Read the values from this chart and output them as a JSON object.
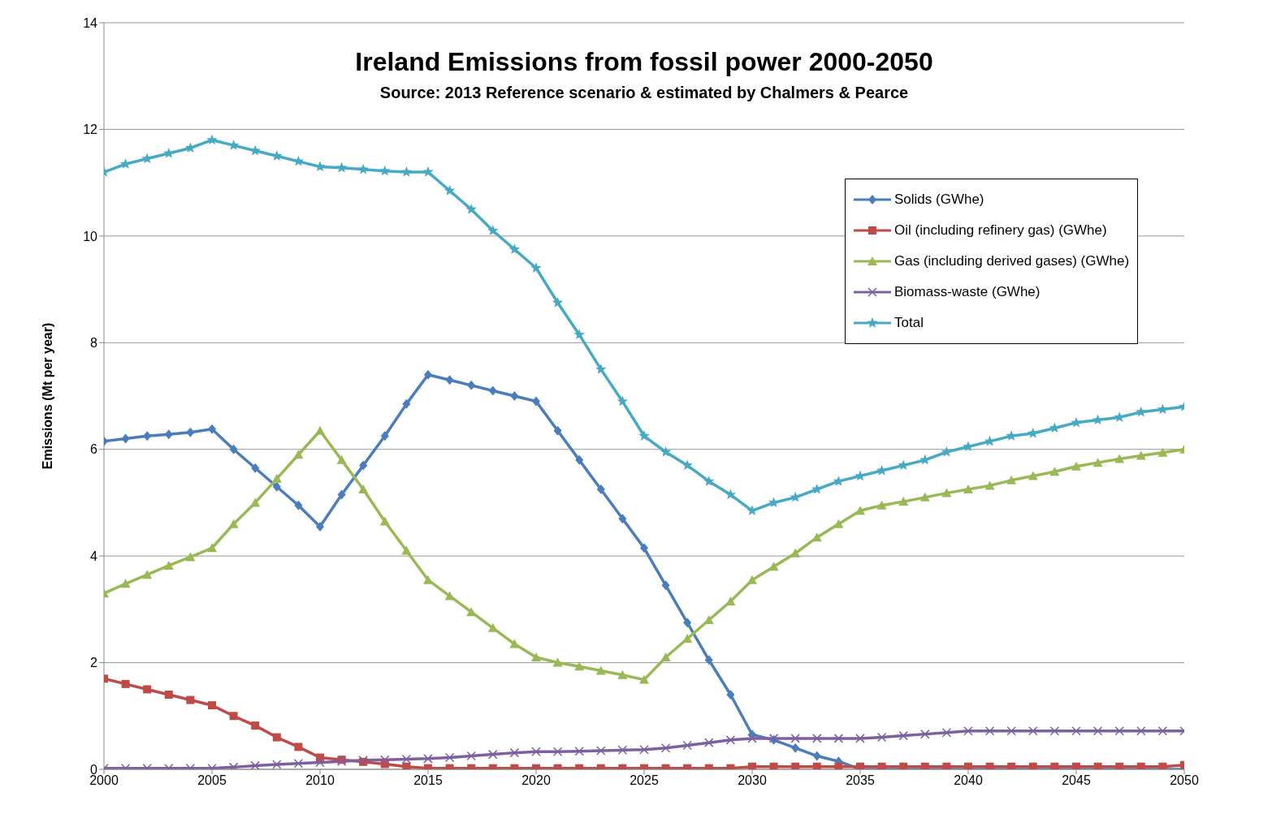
{
  "chart_data": {
    "type": "line",
    "title": "Ireland Emissions from fossil power 2000-2050",
    "subtitle": "Source: 2013 Reference scenario & estimated by Chalmers & Pearce",
    "ylabel": "Emissions  (Mt per year)",
    "x": [
      2000,
      2001,
      2002,
      2003,
      2004,
      2005,
      2006,
      2007,
      2008,
      2009,
      2010,
      2011,
      2012,
      2013,
      2014,
      2015,
      2016,
      2017,
      2018,
      2019,
      2020,
      2021,
      2022,
      2023,
      2024,
      2025,
      2026,
      2027,
      2028,
      2029,
      2030,
      2031,
      2032,
      2033,
      2034,
      2035,
      2036,
      2037,
      2038,
      2039,
      2040,
      2041,
      2042,
      2043,
      2044,
      2045,
      2046,
      2047,
      2048,
      2049,
      2050
    ],
    "xlim": [
      2000,
      2050
    ],
    "xticks": [
      2000,
      2005,
      2010,
      2015,
      2020,
      2025,
      2030,
      2035,
      2040,
      2045,
      2050
    ],
    "ylim": [
      0,
      14
    ],
    "yticks": [
      0,
      2,
      4,
      6,
      8,
      10,
      12,
      14
    ],
    "grid": "y",
    "legend": "top right",
    "series": [
      {
        "name": "Solids (GWhe)",
        "color": "#4a7ebb",
        "marker": "diamond",
        "values": [
          6.15,
          6.2,
          6.25,
          6.28,
          6.32,
          6.38,
          6.0,
          5.65,
          5.3,
          4.95,
          4.55,
          5.15,
          5.7,
          6.25,
          6.85,
          7.4,
          7.3,
          7.2,
          7.1,
          7.0,
          6.9,
          6.35,
          5.8,
          5.25,
          4.7,
          4.15,
          3.45,
          2.75,
          2.05,
          1.4,
          0.65,
          0.55,
          0.4,
          0.25,
          0.15,
          0,
          0,
          0,
          0,
          0,
          0,
          0,
          0,
          0,
          0,
          0,
          0,
          0,
          0,
          0,
          0
        ]
      },
      {
        "name": "Oil (including refinery gas) (GWhe)",
        "color": "#be4b48",
        "marker": "square",
        "values": [
          1.7,
          1.6,
          1.5,
          1.4,
          1.3,
          1.2,
          1.0,
          0.82,
          0.6,
          0.42,
          0.22,
          0.18,
          0.14,
          0.1,
          0.05,
          0.02,
          0.02,
          0.02,
          0.02,
          0.02,
          0.02,
          0.02,
          0.02,
          0.02,
          0.02,
          0.02,
          0.02,
          0.02,
          0.02,
          0.02,
          0.05,
          0.05,
          0.05,
          0.05,
          0.05,
          0.05,
          0.05,
          0.05,
          0.05,
          0.05,
          0.05,
          0.05,
          0.05,
          0.05,
          0.05,
          0.05,
          0.05,
          0.05,
          0.05,
          0.05,
          0.08
        ]
      },
      {
        "name": "Gas (including derived gases) (GWhe)",
        "color": "#98b954",
        "marker": "triangle",
        "values": [
          3.3,
          3.48,
          3.65,
          3.82,
          3.98,
          4.15,
          4.6,
          5.0,
          5.45,
          5.9,
          6.35,
          5.8,
          5.25,
          4.65,
          4.1,
          3.55,
          3.25,
          2.95,
          2.65,
          2.35,
          2.1,
          2.0,
          1.93,
          1.85,
          1.77,
          1.68,
          2.1,
          2.45,
          2.8,
          3.15,
          3.55,
          3.8,
          4.05,
          4.35,
          4.6,
          4.85,
          4.95,
          5.02,
          5.1,
          5.18,
          5.25,
          5.32,
          5.42,
          5.5,
          5.58,
          5.68,
          5.75,
          5.82,
          5.88,
          5.94,
          6.0
        ]
      },
      {
        "name": "Biomass-waste (GWhe)",
        "color": "#7d60a0",
        "marker": "cross",
        "values": [
          0.02,
          0.02,
          0.02,
          0.02,
          0.02,
          0.02,
          0.04,
          0.07,
          0.09,
          0.11,
          0.13,
          0.15,
          0.17,
          0.18,
          0.19,
          0.2,
          0.22,
          0.25,
          0.28,
          0.31,
          0.33,
          0.33,
          0.34,
          0.35,
          0.36,
          0.37,
          0.4,
          0.45,
          0.5,
          0.55,
          0.58,
          0.58,
          0.58,
          0.58,
          0.58,
          0.58,
          0.6,
          0.63,
          0.66,
          0.69,
          0.72,
          0.72,
          0.72,
          0.72,
          0.72,
          0.72,
          0.72,
          0.72,
          0.72,
          0.72,
          0.72
        ]
      },
      {
        "name": "Total",
        "color": "#46aac5",
        "marker": "star",
        "values": [
          11.2,
          11.35,
          11.45,
          11.55,
          11.65,
          11.8,
          11.7,
          11.6,
          11.5,
          11.4,
          11.3,
          11.28,
          11.25,
          11.22,
          11.2,
          11.2,
          10.85,
          10.5,
          10.1,
          9.75,
          9.4,
          8.75,
          8.15,
          7.5,
          6.9,
          6.25,
          5.95,
          5.7,
          5.4,
          5.15,
          4.85,
          5.0,
          5.1,
          5.25,
          5.4,
          5.5,
          5.6,
          5.7,
          5.8,
          5.95,
          6.05,
          6.15,
          6.25,
          6.3,
          6.4,
          6.5,
          6.55,
          6.6,
          6.7,
          6.75,
          6.8
        ]
      }
    ]
  }
}
